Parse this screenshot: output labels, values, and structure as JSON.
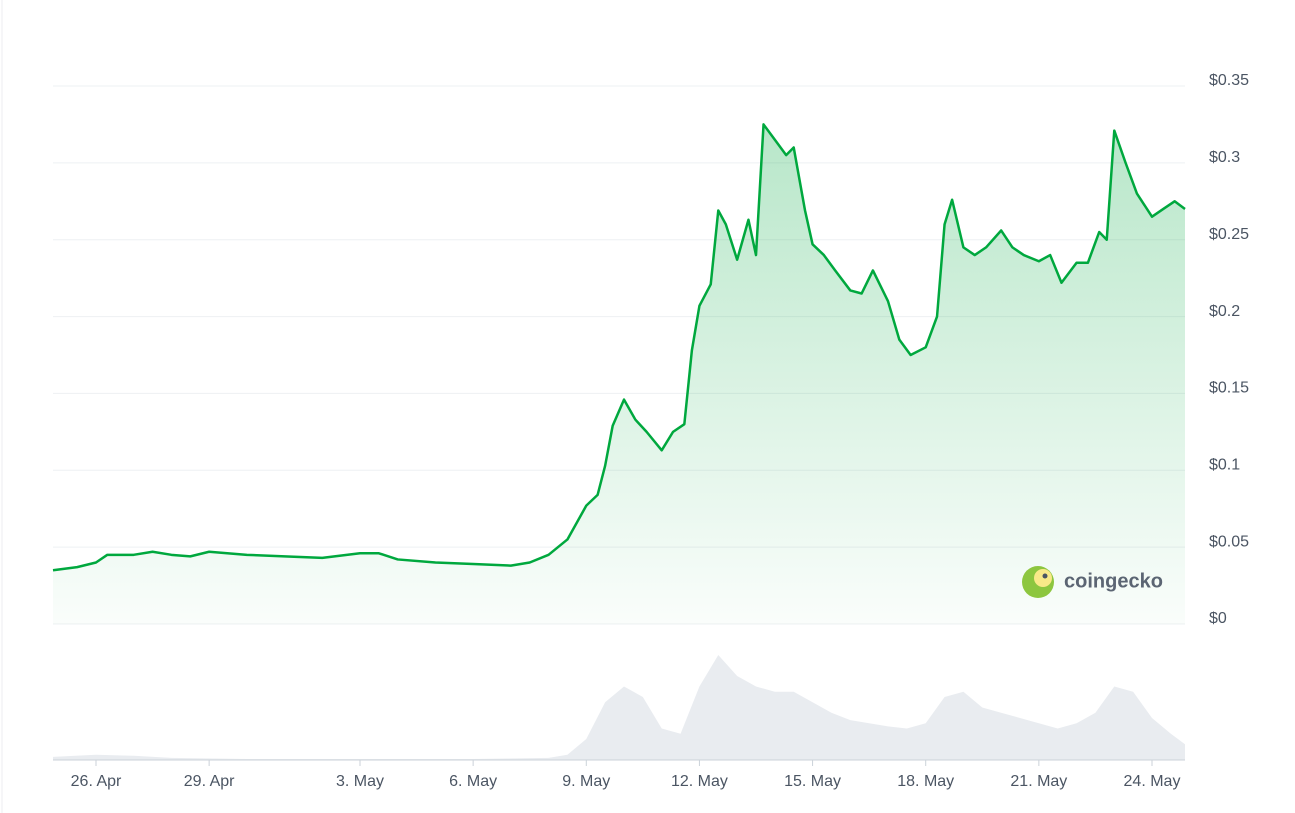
{
  "chart_data": {
    "type": "line",
    "color": "#00a83e",
    "grid": true,
    "x": [
      -1.14,
      -0.5,
      0,
      0.3,
      1,
      1.5,
      2,
      2.5,
      3,
      4,
      5,
      6,
      7,
      7.5,
      8,
      9,
      10,
      11,
      11.5,
      12,
      12.5,
      13,
      13.3,
      13.5,
      13.7,
      14,
      14.3,
      14.6,
      15,
      15.3,
      15.6,
      15.8,
      16,
      16.3,
      16.5,
      16.7,
      17,
      17.3,
      17.5,
      17.7,
      18,
      18.3,
      18.5,
      18.8,
      19,
      19.3,
      19.6,
      20,
      20.3,
      20.6,
      21,
      21.3,
      21.6,
      22,
      22.3,
      22.5,
      22.7,
      23,
      23.3,
      23.6,
      24,
      24.3,
      24.6,
      25,
      25.3,
      25.6,
      26,
      26.3,
      26.6,
      26.8,
      27,
      27.3,
      27.6,
      28,
      28.3,
      28.6,
      28.875
    ],
    "values": [
      0.035,
      0.037,
      0.04,
      0.045,
      0.045,
      0.047,
      0.045,
      0.044,
      0.047,
      0.045,
      0.044,
      0.043,
      0.046,
      0.046,
      0.042,
      0.04,
      0.039,
      0.038,
      0.04,
      0.045,
      0.055,
      0.077,
      0.084,
      0.103,
      0.129,
      0.146,
      0.133,
      0.125,
      0.113,
      0.125,
      0.13,
      0.178,
      0.207,
      0.221,
      0.269,
      0.26,
      0.237,
      0.263,
      0.24,
      0.325,
      0.315,
      0.305,
      0.31,
      0.269,
      0.247,
      0.24,
      0.23,
      0.217,
      0.215,
      0.23,
      0.21,
      0.185,
      0.175,
      0.18,
      0.2,
      0.26,
      0.276,
      0.245,
      0.24,
      0.245,
      0.256,
      0.245,
      0.24,
      0.236,
      0.24,
      0.222,
      0.235,
      0.235,
      0.255,
      0.25,
      0.321,
      0.3,
      0.28,
      0.265,
      0.27,
      0.275,
      0.27
    ],
    "xlim": [
      -1.14,
      28.875
    ],
    "xticks": [
      {
        "value": 0,
        "label": "26. Apr"
      },
      {
        "value": 3,
        "label": "29. Apr"
      },
      {
        "value": 7,
        "label": "3. May"
      },
      {
        "value": 10,
        "label": "6. May"
      },
      {
        "value": 13,
        "label": "9. May"
      },
      {
        "value": 16,
        "label": "12. May"
      },
      {
        "value": 19,
        "label": "15. May"
      },
      {
        "value": 22,
        "label": "18. May"
      },
      {
        "value": 25,
        "label": "21. May"
      },
      {
        "value": 28,
        "label": "24. May"
      }
    ],
    "ylim": [
      0,
      0.35
    ],
    "yticks": [
      {
        "value": 0,
        "label": "$0"
      },
      {
        "value": 0.05,
        "label": "$0.05"
      },
      {
        "value": 0.1,
        "label": "$0.1"
      },
      {
        "value": 0.15,
        "label": "$0.15"
      },
      {
        "value": 0.2,
        "label": "$0.2"
      },
      {
        "value": 0.25,
        "label": "$0.25"
      },
      {
        "value": 0.3,
        "label": "$0.3"
      },
      {
        "value": 0.35,
        "label": "$0.35"
      }
    ],
    "volume": {
      "color": "#e9ecf0",
      "ylim": [
        0,
        100
      ],
      "x": [
        -1.14,
        0,
        1,
        2,
        4,
        6,
        8,
        10,
        12,
        12.5,
        13,
        13.5,
        14,
        14.5,
        15,
        15.5,
        16,
        16.5,
        17,
        17.5,
        18,
        18.5,
        19,
        19.5,
        20,
        20.5,
        21,
        21.5,
        22,
        22.5,
        23,
        23.5,
        24,
        24.5,
        25,
        25.5,
        26,
        26.5,
        27,
        27.5,
        28,
        28.5,
        28.875
      ],
      "values": [
        3,
        5,
        4,
        2,
        1,
        1,
        1,
        1,
        2,
        5,
        20,
        55,
        70,
        60,
        30,
        25,
        70,
        100,
        80,
        70,
        65,
        65,
        55,
        45,
        38,
        35,
        32,
        30,
        35,
        60,
        65,
        50,
        45,
        40,
        35,
        30,
        35,
        45,
        70,
        65,
        40,
        25,
        15
      ]
    },
    "watermark": "coingecko"
  }
}
